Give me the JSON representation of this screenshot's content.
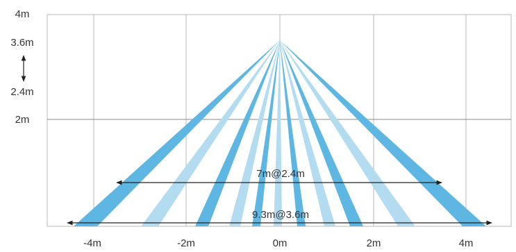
{
  "diagram": {
    "height_ticks": [
      {
        "label": "4m"
      },
      {
        "label": "3.6m"
      },
      {
        "label": "2.4m"
      },
      {
        "label": "2m"
      }
    ],
    "width_ticks": [
      {
        "label": "-4m"
      },
      {
        "label": "-2m"
      },
      {
        "label": "0m"
      },
      {
        "label": "2m"
      },
      {
        "label": "4m"
      }
    ],
    "dimensions": {
      "upper": {
        "label": "7m@2.4m",
        "width_m": 7,
        "height_m": 2.4
      },
      "lower": {
        "label": "9.3m@3.6m",
        "width_m": 9.3,
        "height_m": 3.6
      }
    },
    "colors": {
      "dark_beam": "#5eb6e2",
      "light_beam": "#b3dcf1",
      "grid": "#b0b0b0",
      "arrow": "#222222"
    }
  }
}
